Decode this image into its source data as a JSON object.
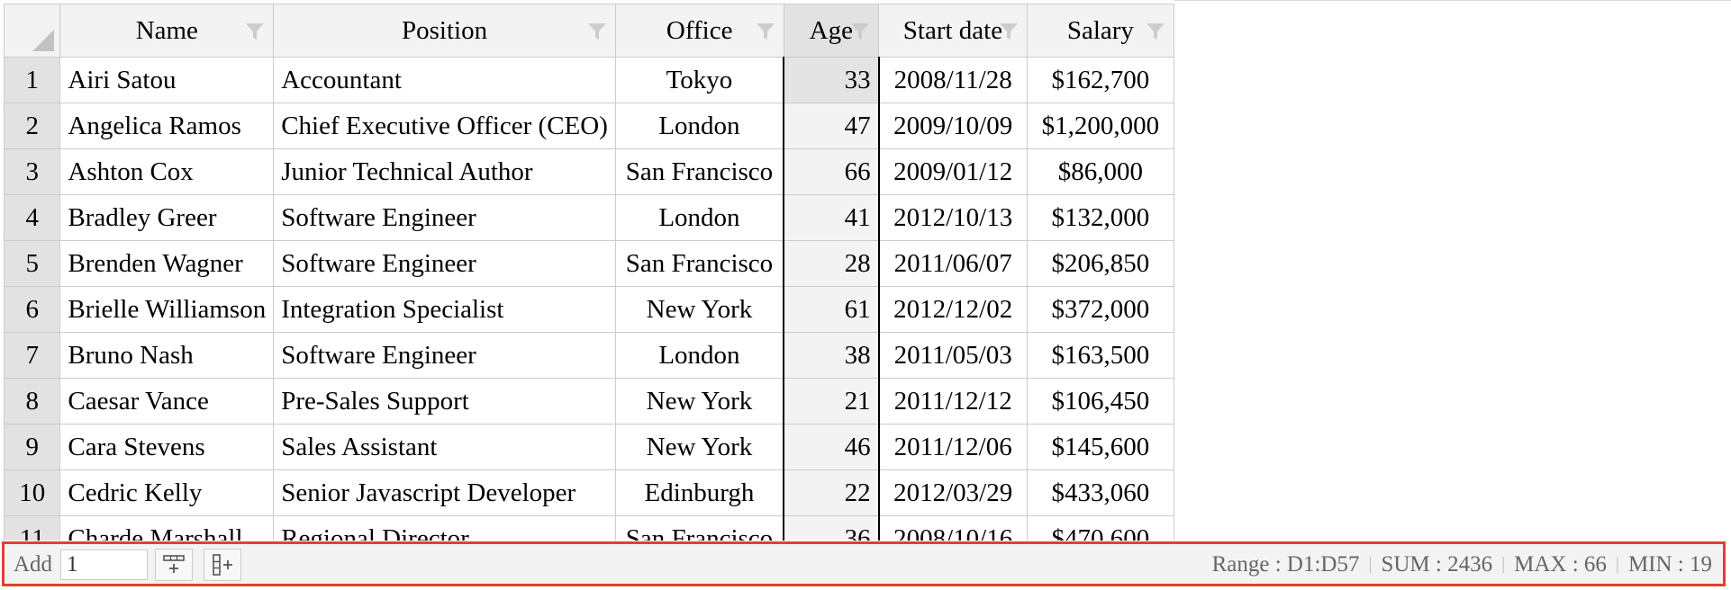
{
  "columns": [
    {
      "label": "Name"
    },
    {
      "label": "Position"
    },
    {
      "label": "Office"
    },
    {
      "label": "Age"
    },
    {
      "label": "Start date"
    },
    {
      "label": "Salary"
    }
  ],
  "rows": [
    {
      "num": "1",
      "name": "Airi Satou",
      "position": "Accountant",
      "office": "Tokyo",
      "age": "33",
      "start": "2008/11/28",
      "salary": "$162,700"
    },
    {
      "num": "2",
      "name": "Angelica Ramos",
      "position": "Chief Executive Officer (CEO)",
      "office": "London",
      "age": "47",
      "start": "2009/10/09",
      "salary": "$1,200,000"
    },
    {
      "num": "3",
      "name": "Ashton Cox",
      "position": "Junior Technical Author",
      "office": "San Francisco",
      "age": "66",
      "start": "2009/01/12",
      "salary": "$86,000"
    },
    {
      "num": "4",
      "name": "Bradley Greer",
      "position": "Software Engineer",
      "office": "London",
      "age": "41",
      "start": "2012/10/13",
      "salary": "$132,000"
    },
    {
      "num": "5",
      "name": "Brenden Wagner",
      "position": "Software Engineer",
      "office": "San Francisco",
      "age": "28",
      "start": "2011/06/07",
      "salary": "$206,850"
    },
    {
      "num": "6",
      "name": "Brielle Williamson",
      "position": "Integration Specialist",
      "office": "New York",
      "age": "61",
      "start": "2012/12/02",
      "salary": "$372,000"
    },
    {
      "num": "7",
      "name": "Bruno Nash",
      "position": "Software Engineer",
      "office": "London",
      "age": "38",
      "start": "2011/05/03",
      "salary": "$163,500"
    },
    {
      "num": "8",
      "name": "Caesar Vance",
      "position": "Pre-Sales Support",
      "office": "New York",
      "age": "21",
      "start": "2011/12/12",
      "salary": "$106,450"
    },
    {
      "num": "9",
      "name": "Cara Stevens",
      "position": "Sales Assistant",
      "office": "New York",
      "age": "46",
      "start": "2011/12/06",
      "salary": "$145,600"
    },
    {
      "num": "10",
      "name": "Cedric Kelly",
      "position": "Senior Javascript Developer",
      "office": "Edinburgh",
      "age": "22",
      "start": "2012/03/29",
      "salary": "$433,060"
    },
    {
      "num": "11",
      "name": "Charde Marshall",
      "position": "Regional Director",
      "office": "San Francisco",
      "age": "36",
      "start": "2008/10/16",
      "salary": "$470,600"
    }
  ],
  "toolbar": {
    "add_label": "Add",
    "add_value": "1",
    "add_row_icon": "add-row-icon",
    "add_column_icon": "add-column-icon",
    "range_label": "Range : D1:D57",
    "sum_label": "SUM : 2436",
    "max_label": "MAX : 66",
    "min_label": "MIN : 19"
  },
  "colors": {
    "highlight_border": "#e0412e",
    "header_bg": "#f3f3f3",
    "selected_header_bg": "#e2e2e2"
  }
}
